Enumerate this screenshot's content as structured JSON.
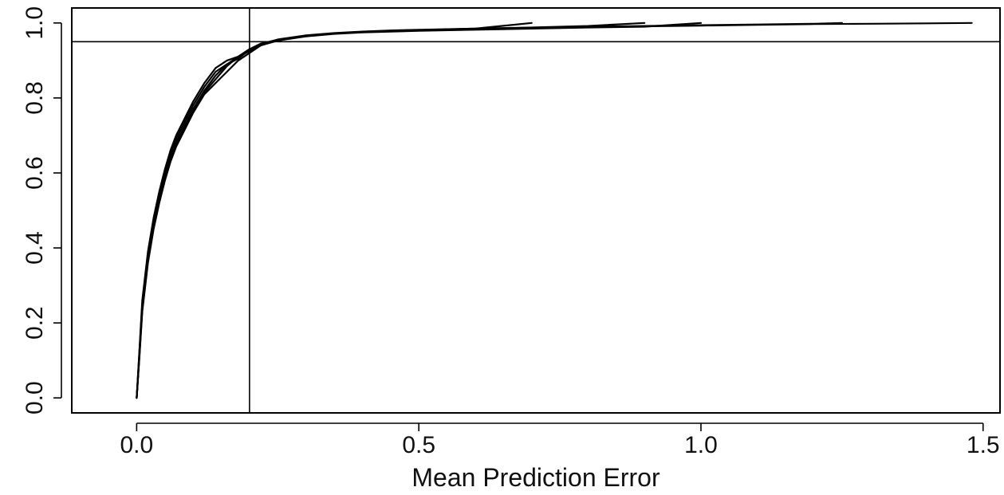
{
  "chart_data": {
    "type": "line",
    "title": "",
    "xlabel": "Mean Prediction Error",
    "ylabel": "",
    "xlim": [
      -0.115,
      1.53
    ],
    "ylim": [
      -0.04,
      1.04
    ],
    "xticks": [
      0.0,
      0.5,
      1.0,
      1.5
    ],
    "xtick_labels": [
      "0.0",
      "0.5",
      "1.0",
      "1.5"
    ],
    "yticks": [
      0.0,
      0.2,
      0.4,
      0.6,
      0.8,
      1.0
    ],
    "ytick_labels": [
      "0.0",
      "0.2",
      "0.4",
      "0.6",
      "0.8",
      "1.0"
    ],
    "reference_lines": {
      "vline_x": 0.2,
      "hline_y": 0.95
    },
    "grid": false,
    "legend": "none",
    "colors": {
      "line": "#000000",
      "background": "#ffffff"
    },
    "series": [
      {
        "x": [
          0.0,
          0.005,
          0.01,
          0.02,
          0.03,
          0.04,
          0.05,
          0.06,
          0.07,
          0.08,
          0.1,
          0.12,
          0.14,
          0.16,
          0.18,
          0.2,
          0.22,
          0.25,
          0.3,
          0.35,
          0.4,
          0.45,
          0.5,
          0.6,
          0.7,
          0.8,
          0.9,
          1.0,
          1.1,
          1.2,
          1.3,
          1.4,
          1.48
        ],
        "y": [
          0.0,
          0.12,
          0.24,
          0.37,
          0.46,
          0.53,
          0.59,
          0.64,
          0.68,
          0.71,
          0.77,
          0.82,
          0.86,
          0.89,
          0.91,
          0.93,
          0.945,
          0.955,
          0.965,
          0.972,
          0.976,
          0.978,
          0.98,
          0.983,
          0.986,
          0.989,
          0.991,
          0.993,
          0.995,
          0.997,
          0.998,
          0.999,
          1.0
        ]
      },
      {
        "x": [
          0.0,
          0.005,
          0.01,
          0.02,
          0.03,
          0.04,
          0.05,
          0.06,
          0.07,
          0.08,
          0.1,
          0.12,
          0.14,
          0.16,
          0.18,
          0.2,
          0.22,
          0.25,
          0.3,
          0.35,
          0.4,
          0.45,
          0.5,
          0.6,
          0.7,
          0.8,
          0.9,
          1.0,
          1.1,
          1.2,
          1.25
        ],
        "y": [
          0.0,
          0.13,
          0.26,
          0.39,
          0.48,
          0.55,
          0.61,
          0.66,
          0.7,
          0.73,
          0.79,
          0.84,
          0.88,
          0.9,
          0.91,
          0.925,
          0.94,
          0.955,
          0.966,
          0.972,
          0.976,
          0.979,
          0.981,
          0.984,
          0.987,
          0.99,
          0.992,
          0.994,
          0.996,
          0.998,
          1.0
        ]
      },
      {
        "x": [
          0.0,
          0.005,
          0.01,
          0.02,
          0.03,
          0.04,
          0.05,
          0.06,
          0.07,
          0.08,
          0.1,
          0.12,
          0.14,
          0.16,
          0.18,
          0.2,
          0.22,
          0.25,
          0.3,
          0.35,
          0.4,
          0.45,
          0.5,
          0.6,
          0.7,
          0.8,
          0.9,
          1.0
        ],
        "y": [
          0.0,
          0.11,
          0.23,
          0.36,
          0.45,
          0.52,
          0.58,
          0.63,
          0.67,
          0.7,
          0.76,
          0.81,
          0.84,
          0.87,
          0.9,
          0.92,
          0.94,
          0.953,
          0.964,
          0.971,
          0.975,
          0.977,
          0.979,
          0.982,
          0.985,
          0.988,
          0.99,
          1.0
        ]
      },
      {
        "x": [
          0.0,
          0.005,
          0.01,
          0.02,
          0.03,
          0.04,
          0.05,
          0.06,
          0.07,
          0.08,
          0.1,
          0.12,
          0.14,
          0.16,
          0.18,
          0.2,
          0.22,
          0.25,
          0.3,
          0.35,
          0.4,
          0.45,
          0.5,
          0.6,
          0.7,
          0.8,
          0.9
        ],
        "y": [
          0.0,
          0.125,
          0.25,
          0.38,
          0.47,
          0.54,
          0.6,
          0.65,
          0.69,
          0.72,
          0.78,
          0.83,
          0.87,
          0.89,
          0.905,
          0.928,
          0.943,
          0.956,
          0.967,
          0.973,
          0.977,
          0.98,
          0.982,
          0.985,
          0.988,
          0.992,
          1.0
        ]
      },
      {
        "x": [
          0.0,
          0.005,
          0.01,
          0.02,
          0.03,
          0.04,
          0.05,
          0.06,
          0.07,
          0.08,
          0.1,
          0.12,
          0.14,
          0.16,
          0.18,
          0.2,
          0.22,
          0.25,
          0.3,
          0.35,
          0.4,
          0.45,
          0.5,
          0.6,
          0.7
        ],
        "y": [
          0.0,
          0.115,
          0.235,
          0.365,
          0.455,
          0.525,
          0.585,
          0.635,
          0.675,
          0.705,
          0.765,
          0.815,
          0.85,
          0.885,
          0.91,
          0.93,
          0.944,
          0.954,
          0.965,
          0.972,
          0.976,
          0.979,
          0.981,
          0.985,
          1.0
        ]
      }
    ]
  }
}
